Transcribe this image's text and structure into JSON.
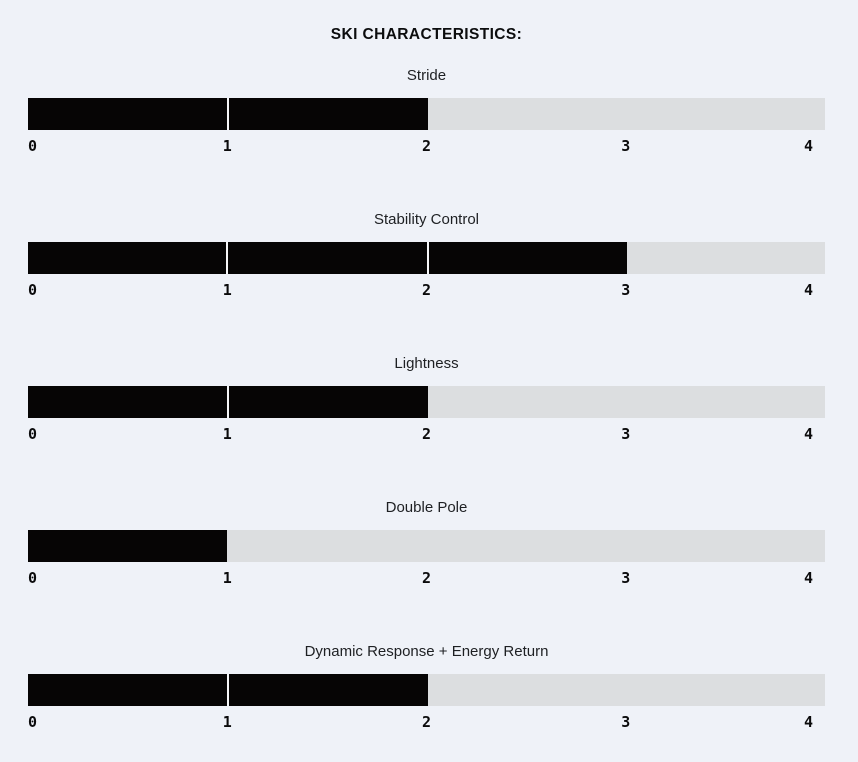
{
  "title": "SKI CHARACTERISTICS:",
  "colors": {
    "background": "#eff2f8",
    "bar_filled": "#060505",
    "bar_empty": "#dcdee0",
    "separator": "#f5f6f8",
    "text": "#1e2023"
  },
  "scale": {
    "min": 0,
    "max": 4,
    "ticks": [
      "0",
      "1",
      "2",
      "3",
      "4"
    ]
  },
  "chart_data": {
    "type": "bar",
    "title": "SKI CHARACTERISTICS:",
    "orientation": "horizontal",
    "categories": [
      "Stride",
      "Stability Control",
      "Lightness",
      "Double Pole",
      "Dynamic Response + Energy Return"
    ],
    "values": [
      2,
      3,
      2,
      1,
      2
    ],
    "xlim": [
      0,
      4
    ],
    "tick_labels": [
      "0",
      "1",
      "2",
      "3",
      "4"
    ],
    "grid": false,
    "legend": false
  }
}
